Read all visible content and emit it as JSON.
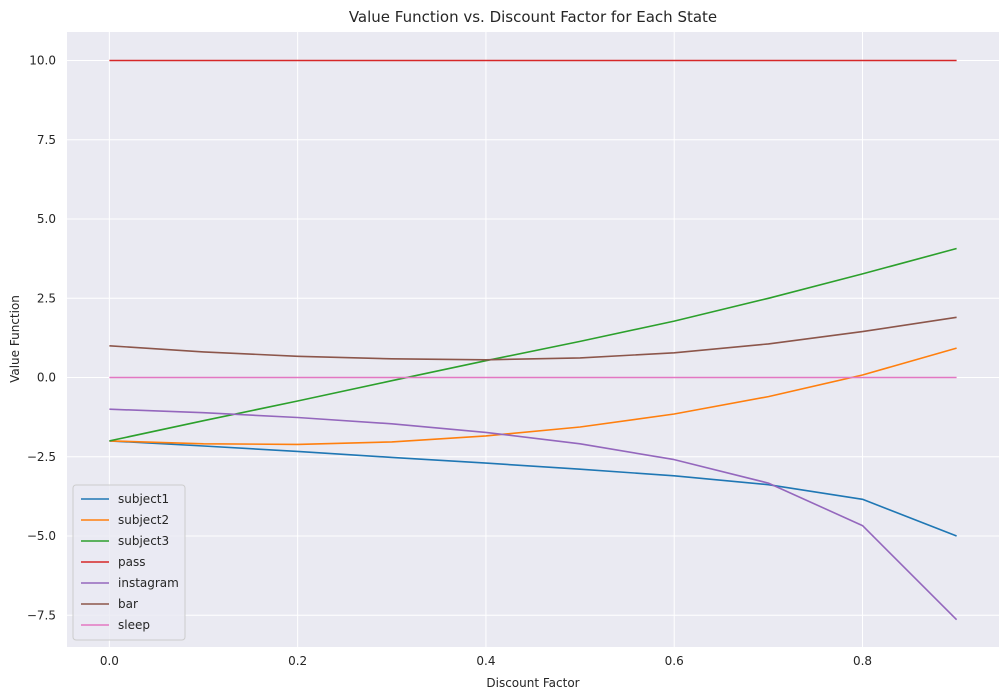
{
  "chart_data": {
    "type": "line",
    "title": "Value Function vs. Discount Factor for Each State",
    "xlabel": "Discount Factor",
    "ylabel": "Value Function",
    "xlim": [
      -0.045,
      0.945
    ],
    "ylim": [
      -8.5,
      10.9
    ],
    "xticks": [
      0.0,
      0.2,
      0.4,
      0.6,
      0.8
    ],
    "xtick_labels": [
      "0.0",
      "0.2",
      "0.4",
      "0.6",
      "0.8"
    ],
    "yticks": [
      -7.5,
      -5.0,
      -2.5,
      0.0,
      2.5,
      5.0,
      7.5,
      10.0
    ],
    "ytick_labels": [
      "−7.5",
      "−5.0",
      "−2.5",
      "0.0",
      "2.5",
      "5.0",
      "7.5",
      "10.0"
    ],
    "grid": true,
    "legend_position": "lower-left",
    "x": [
      0.0,
      0.1,
      0.2,
      0.3,
      0.4,
      0.5,
      0.6,
      0.7,
      0.8,
      0.9
    ],
    "series": [
      {
        "name": "subject1",
        "color": "#1f77b4",
        "values": [
          -2.0,
          -2.16,
          -2.33,
          -2.52,
          -2.7,
          -2.89,
          -3.1,
          -3.38,
          -3.84,
          -5.0
        ]
      },
      {
        "name": "subject2",
        "color": "#ff7f0e",
        "values": [
          -2.0,
          -2.09,
          -2.11,
          -2.03,
          -1.84,
          -1.56,
          -1.15,
          -0.6,
          0.08,
          0.93
        ]
      },
      {
        "name": "subject3",
        "color": "#2ca02c",
        "values": [
          -2.0,
          -1.36,
          -0.74,
          -0.1,
          0.53,
          1.14,
          1.78,
          2.5,
          3.27,
          4.07
        ]
      },
      {
        "name": "pass",
        "color": "#d62728",
        "values": [
          10.0,
          10.0,
          10.0,
          10.0,
          10.0,
          10.0,
          10.0,
          10.0,
          10.0,
          10.0
        ]
      },
      {
        "name": "instagram",
        "color": "#9467bd",
        "values": [
          -1.0,
          -1.11,
          -1.26,
          -1.46,
          -1.73,
          -2.09,
          -2.59,
          -3.33,
          -4.67,
          -7.64
        ]
      },
      {
        "name": "bar",
        "color": "#8c564b",
        "values": [
          1.0,
          0.81,
          0.67,
          0.59,
          0.56,
          0.62,
          0.78,
          1.06,
          1.45,
          1.9
        ]
      },
      {
        "name": "sleep",
        "color": "#e377c2",
        "values": [
          0.0,
          0.0,
          0.0,
          0.0,
          0.0,
          0.0,
          0.0,
          0.0,
          0.0,
          0.0
        ]
      }
    ]
  },
  "colors": {
    "plot_background": "#eaeaf2",
    "grid": "#ffffff",
    "text": "#262626"
  }
}
